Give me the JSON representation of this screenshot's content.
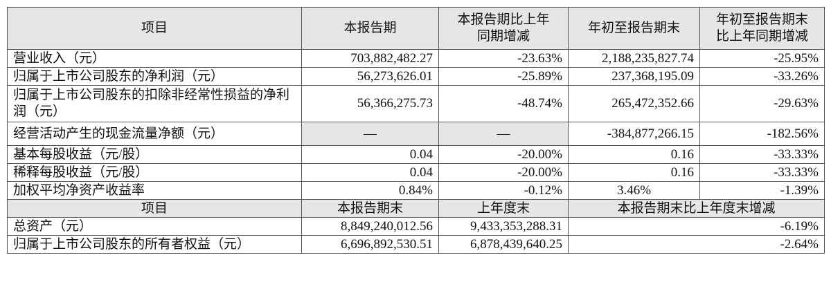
{
  "header1": {
    "item": "项目",
    "current": "本报告期",
    "yoy_change": "本报告期比上年同期增减",
    "ytd": "年初至报告期末",
    "ytd_yoy_change": "年初至报告期末比上年同期增减"
  },
  "income_rows": [
    {
      "label": "营业收入（元）",
      "current": "703,882,482.27",
      "yoy": "-23.63%",
      "ytd": "2,188,235,827.74",
      "ytd_yoy": "-25.95%"
    },
    {
      "label": "归属于上市公司股东的净利润（元）",
      "current": "56,273,626.01",
      "yoy": "-25.89%",
      "ytd": "237,368,195.09",
      "ytd_yoy": "-33.26%"
    },
    {
      "label": "归属于上市公司股东的扣除非经常性损益的净利润（元）",
      "current": "56,366,275.73",
      "yoy": "-48.74%",
      "ytd": "265,472,352.66",
      "ytd_yoy": "-29.63%"
    },
    {
      "label": "经营活动产生的现金流量净额（元）",
      "current": "—",
      "yoy": "—",
      "ytd": "-384,877,266.15",
      "ytd_yoy": "-182.56%"
    },
    {
      "label": "基本每股收益（元/股）",
      "current": "0.04",
      "yoy": "-20.00%",
      "ytd": "0.16",
      "ytd_yoy": "-33.33%"
    },
    {
      "label": "稀释每股收益（元/股）",
      "current": "0.04",
      "yoy": "-20.00%",
      "ytd": "0.16",
      "ytd_yoy": "-33.33%"
    },
    {
      "label": "加权平均净资产收益率",
      "current": "0.84%",
      "yoy": "-0.12%",
      "ytd": "3.46%",
      "ytd_yoy": "-1.39%"
    }
  ],
  "header2": {
    "item": "项目",
    "period_end": "本报告期末",
    "prior_year_end": "上年度末",
    "change": "本报告期末比上年度末增减"
  },
  "balance_rows": [
    {
      "label": "总资产（元）",
      "period_end": "8,849,240,012.56",
      "prior_year_end": "9,433,353,288.31",
      "change": "-6.19%"
    },
    {
      "label": "归属于上市公司股东的所有者权益（元）",
      "period_end": "6,696,892,530.51",
      "prior_year_end": "6,878,439,640.25",
      "change": "-2.64%"
    }
  ]
}
